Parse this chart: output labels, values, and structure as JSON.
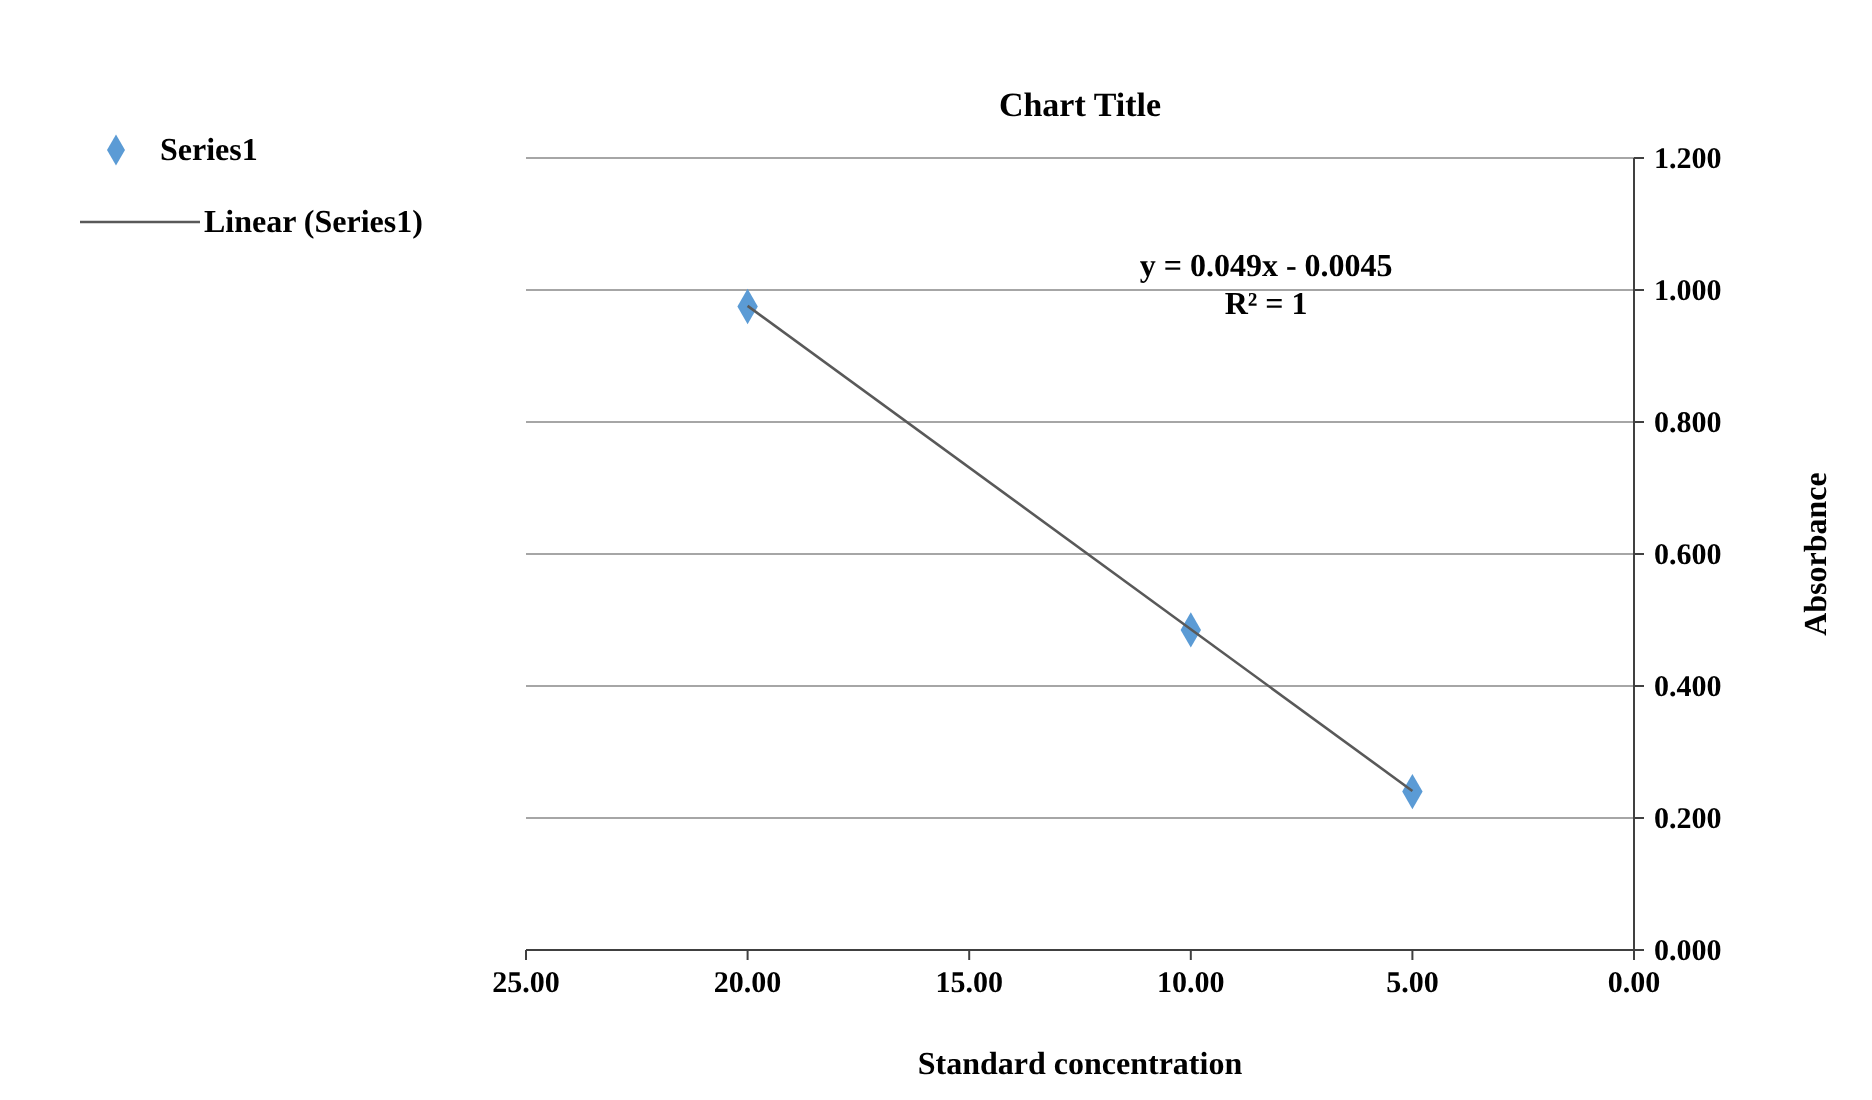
{
  "chart_data": {
    "type": "scatter",
    "title": "Chart Title",
    "xlabel": "Standard concentration",
    "ylabel": "Absorbance",
    "xlim": [
      25,
      0
    ],
    "xticks": [
      {
        "value": 25,
        "label": "25.00"
      },
      {
        "value": 20,
        "label": "20.00"
      },
      {
        "value": 15,
        "label": "15.00"
      },
      {
        "value": 10,
        "label": "10.00"
      },
      {
        "value": 5,
        "label": "5.00"
      },
      {
        "value": 0,
        "label": "0.00"
      }
    ],
    "ylim": [
      0,
      1.2
    ],
    "yticks": [
      {
        "value": 0,
        "label": "0.000"
      },
      {
        "value": 0.2,
        "label": "0.200"
      },
      {
        "value": 0.4,
        "label": "0.400"
      },
      {
        "value": 0.6,
        "label": "0.600"
      },
      {
        "value": 0.8,
        "label": "0.800"
      },
      {
        "value": 1,
        "label": "1.000"
      },
      {
        "value": 1.2,
        "label": "1.200"
      }
    ],
    "grid": "y",
    "legend": "top left",
    "annotations": [
      "y = 0.049x - 0.0045",
      "R² = 1"
    ],
    "series": [
      {
        "name": "Series1",
        "color": "#5b9bd5",
        "marker": "diamond",
        "x": [
          20,
          10,
          5
        ],
        "values": [
          0.975,
          0.485,
          0.24
        ]
      },
      {
        "name": "Linear (Series1)",
        "type": "line",
        "color": "#595959",
        "line_style": "solid",
        "x": [
          20,
          5
        ],
        "values": [
          0.976,
          0.241
        ]
      }
    ]
  }
}
